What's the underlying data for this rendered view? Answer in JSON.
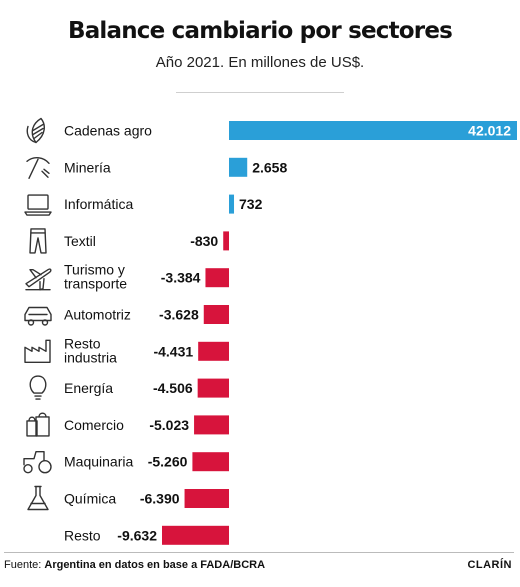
{
  "header": {
    "title": "Balance cambiario por sectores",
    "subtitle": "Año 2021. En millones de US$."
  },
  "footer": {
    "source_prefix": "Fuente:",
    "source_text": "Argentina en datos en base a FADA/BCRA",
    "brand": "CLARÍN"
  },
  "colors": {
    "positive": "#2a9fd8",
    "negative": "#d7143c",
    "icon": "#333333"
  },
  "chart_data": {
    "type": "bar",
    "orientation": "horizontal",
    "title": "Balance cambiario por sectores",
    "subtitle": "Año 2021. En millones de US$.",
    "categories": [
      "Cadenas agro",
      "Minería",
      "Informática",
      "Textil",
      "Turismo y transporte",
      "Automotriz",
      "Resto industria",
      "Energía",
      "Comercio",
      "Maquinaria",
      "Química",
      "Resto"
    ],
    "values": [
      42012,
      2658,
      732,
      -830,
      -3384,
      -3628,
      -4431,
      -4506,
      -5023,
      -5260,
      -6390,
      -9632
    ],
    "value_labels": [
      "42.012",
      "2.658",
      "732",
      "-830",
      "-3.384",
      "-3.628",
      "-4.431",
      "-4.506",
      "-5.023",
      "-5.260",
      "-6.390",
      "-9.632"
    ],
    "category_labels": [
      [
        "Cadenas agro"
      ],
      [
        "Minería"
      ],
      [
        "Informática"
      ],
      [
        "Textil"
      ],
      [
        "Turismo y",
        "transporte"
      ],
      [
        "Automotriz"
      ],
      [
        "Resto",
        "industria"
      ],
      [
        "Energía"
      ],
      [
        "Comercio"
      ],
      [
        "Maquinaria"
      ],
      [
        "Química"
      ],
      [
        "Resto"
      ]
    ],
    "icons": [
      "corn-icon",
      "pickaxe-icon",
      "laptop-icon",
      "pants-icon",
      "airplane-icon",
      "car-icon",
      "factory-icon",
      "lightbulb-icon",
      "shopping-bags-icon",
      "tractor-icon",
      "flask-icon",
      ""
    ],
    "xlabel": "",
    "ylabel": "",
    "grid": false,
    "legend": "none"
  }
}
